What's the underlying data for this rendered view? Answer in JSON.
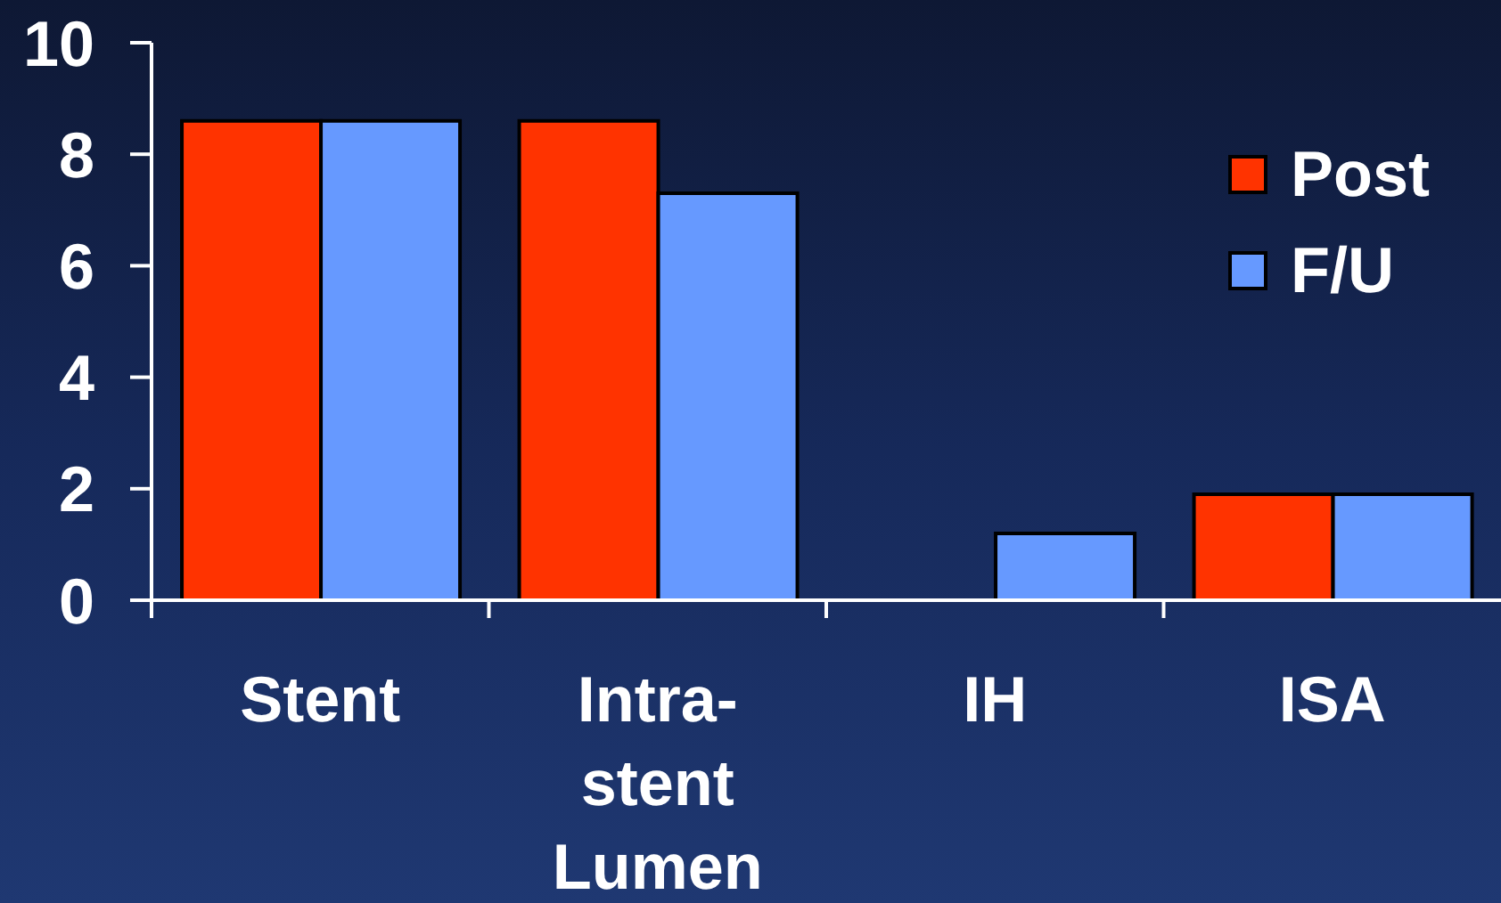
{
  "chart_data": {
    "type": "bar",
    "categories": [
      "Stent",
      "Intra-stent Lumen",
      "IH",
      "ISA"
    ],
    "series": [
      {
        "name": "Post",
        "color": "#ff3300",
        "values": [
          8.6,
          8.6,
          0,
          1.9
        ]
      },
      {
        "name": "F/U",
        "color": "#6699ff",
        "values": [
          8.6,
          7.3,
          1.2,
          1.9
        ]
      }
    ],
    "ylim": [
      0,
      10
    ],
    "yticks": [
      0,
      2,
      4,
      6,
      8,
      10
    ],
    "legend": "top right"
  }
}
